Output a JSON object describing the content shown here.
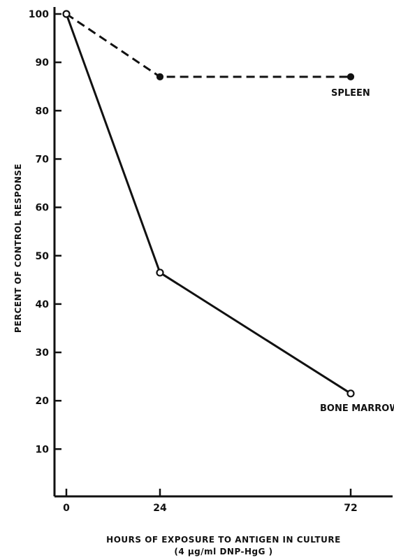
{
  "chart_data": {
    "type": "line",
    "title": "",
    "xlabel": "HOURS OF EXPOSURE TO ANTIGEN IN CULTURE",
    "xlabel_sub": "(4 µg/ml DNP-HgG )",
    "ylabel": "PERCENT OF CONTROL RESPONSE",
    "x_ticks": [
      0,
      24,
      72
    ],
    "y_ticks": [
      10,
      20,
      30,
      40,
      50,
      60,
      70,
      80,
      90,
      100
    ],
    "ylim": [
      0,
      100
    ],
    "grid": false,
    "series": [
      {
        "name": "SPLEEN",
        "style": "dashed",
        "marker": "filled-circle",
        "color": "#111111",
        "x": [
          0,
          24,
          72
        ],
        "y": [
          100,
          87,
          87
        ]
      },
      {
        "name": "BONE MARROW",
        "style": "solid",
        "marker": "open-circle",
        "color": "#111111",
        "x": [
          0,
          24,
          72
        ],
        "y": [
          100,
          46.5,
          21.5
        ]
      }
    ]
  }
}
